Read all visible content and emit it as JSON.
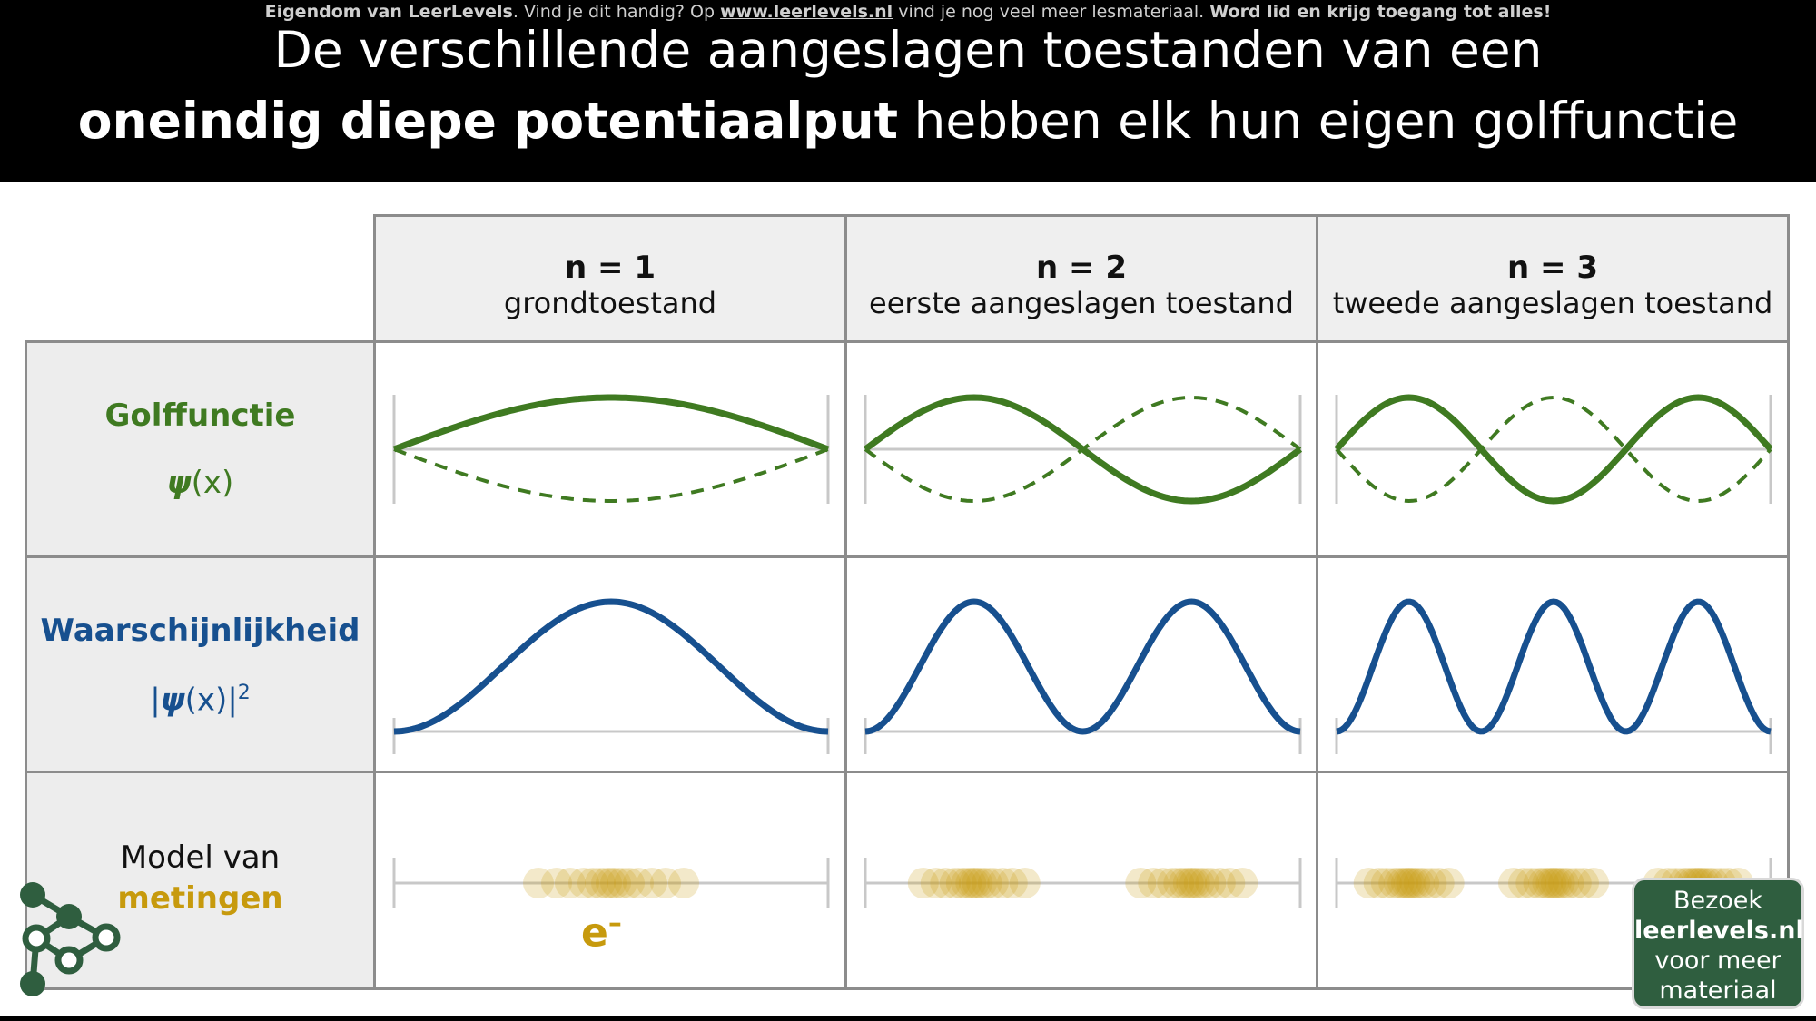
{
  "header": {
    "notice_owner": "Eigendom van LeerLevels",
    "notice_mid1": ". Vind je dit handig? Op ",
    "notice_link": "www.leerlevels.nl",
    "notice_mid2": " vind je nog veel meer lesmateriaal. ",
    "notice_cta": "Word lid en krijg toegang tot alles!",
    "title_line1": "De verschillende aangeslagen toestanden van een",
    "title_bold": "oneindig diepe potentiaalput",
    "title_rest": " hebben elk hun eigen golffunctie"
  },
  "columns": [
    {
      "n": "n = 1",
      "desc": "grondtoestand"
    },
    {
      "n": "n = 2",
      "desc": "eerste aangeslagen toestand"
    },
    {
      "n": "n = 3",
      "desc": "tweede aangeslagen toestand"
    }
  ],
  "rows": {
    "wave": {
      "title": "Golffunctie",
      "psi": "ψ",
      "arg": "(x)"
    },
    "prob": {
      "title": "Waarschijnlijkheid",
      "open": "|",
      "psi": "ψ",
      "arg": "(x)|",
      "exp": "2"
    },
    "model": {
      "line1": "Model van",
      "line2": "metingen"
    }
  },
  "electron": {
    "symbol": "e",
    "charge": "–"
  },
  "cta": {
    "line1": "Bezoek",
    "line2": "leerlevels.nl",
    "line3": "voor meer",
    "line4": "materiaal"
  },
  "colors": {
    "green": "#3f7a21",
    "blue": "#17508f",
    "gold": "#c79a0d",
    "grid": "#8c8c8c"
  }
}
